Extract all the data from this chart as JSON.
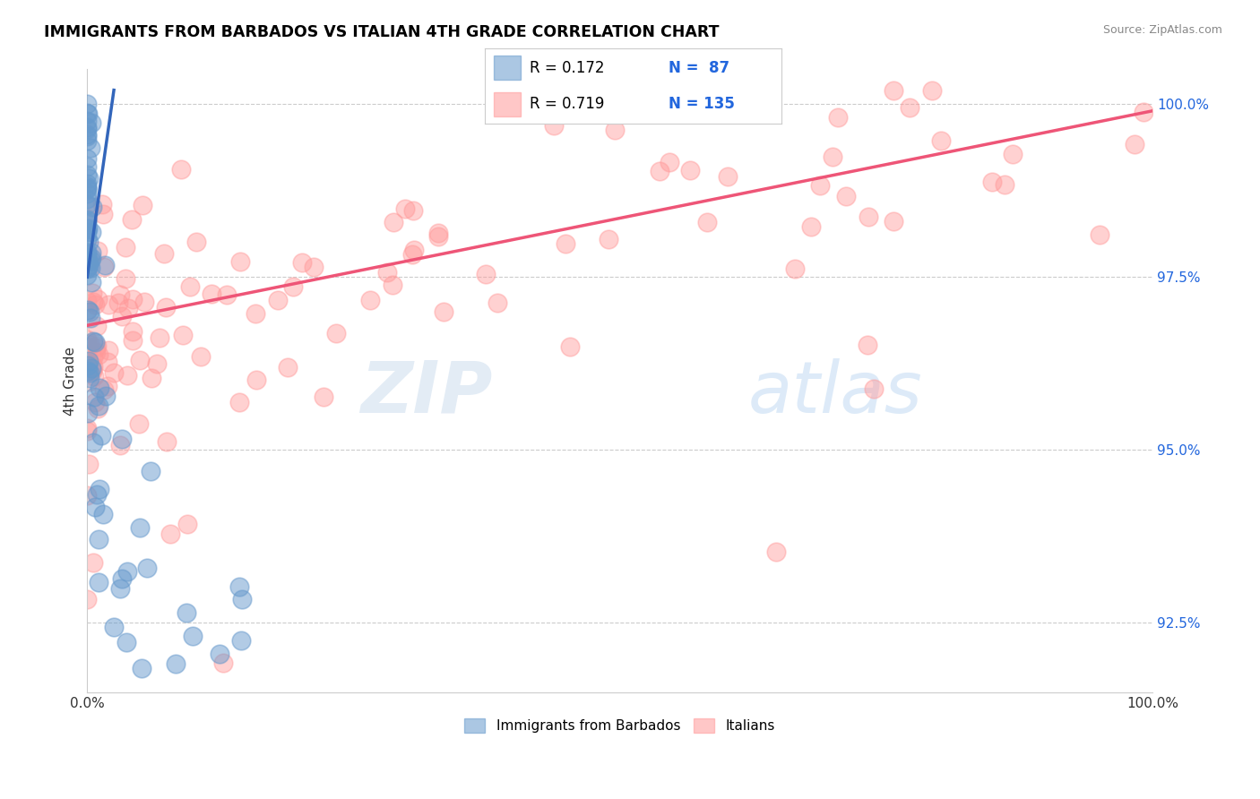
{
  "title": "IMMIGRANTS FROM BARBADOS VS ITALIAN 4TH GRADE CORRELATION CHART",
  "source": "Source: ZipAtlas.com",
  "ylabel": "4th Grade",
  "xlim": [
    0.0,
    1.0
  ],
  "ylim": [
    0.915,
    1.005
  ],
  "yticks": [
    0.925,
    0.95,
    0.975,
    1.0
  ],
  "ytick_labels": [
    "92.5%",
    "95.0%",
    "97.5%",
    "100.0%"
  ],
  "legend_blue_r": "R = 0.172",
  "legend_blue_n": "N =  87",
  "legend_pink_r": "R = 0.719",
  "legend_pink_n": "N = 135",
  "blue_color": "#6699CC",
  "pink_color": "#FF9999",
  "blue_line_color": "#3366BB",
  "pink_line_color": "#EE5577",
  "watermark_zip": "ZIP",
  "watermark_atlas": "atlas"
}
